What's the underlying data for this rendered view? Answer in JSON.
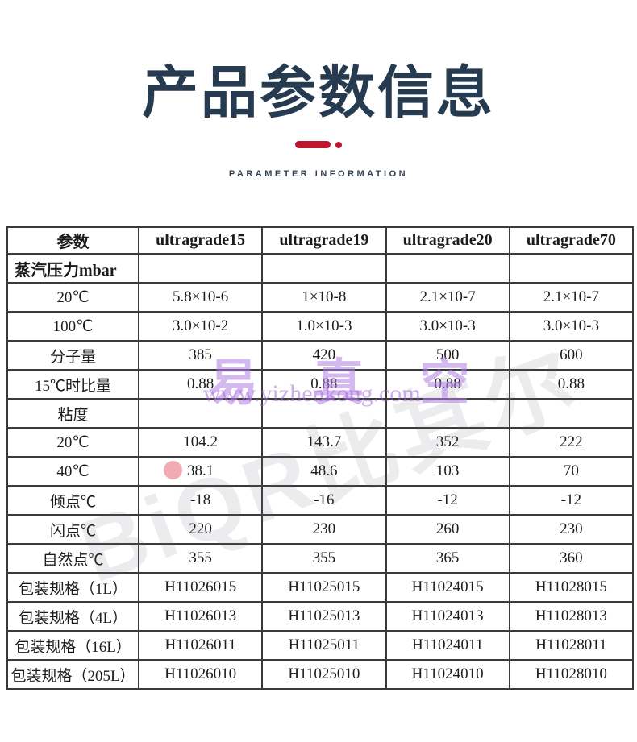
{
  "header": {
    "title": "产品参数信息",
    "subtitle": "PARAMETER INFORMATION"
  },
  "accent_color": "#c01530",
  "title_color": "#263a50",
  "watermarks": {
    "brand_cn": "易 真 空",
    "url": "www.yizhenkong.com",
    "diagonal_brand": "BiQR比其尔"
  },
  "table": {
    "columns": [
      "参数",
      "ultragrade15",
      "ultragrade19",
      "ultragrade20",
      "ultragrade70"
    ],
    "rows": [
      {
        "label": "蒸汽压力mbar",
        "bold": true,
        "values": [
          "",
          "",
          "",
          ""
        ]
      },
      {
        "label": "20℃",
        "bold": false,
        "values": [
          "5.8×10-6",
          "1×10-8",
          "2.1×10-7",
          "2.1×10-7"
        ]
      },
      {
        "label": "100℃",
        "bold": false,
        "values": [
          "3.0×10-2",
          "1.0×10-3",
          "3.0×10-3",
          "3.0×10-3"
        ]
      },
      {
        "label": "分子量",
        "bold": false,
        "values": [
          "385",
          "420",
          "500",
          "600"
        ]
      },
      {
        "label": "15℃时比量",
        "bold": false,
        "values": [
          "0.88",
          "0.88",
          "0.88",
          "0.88"
        ]
      },
      {
        "label": "粘度",
        "bold": false,
        "values": [
          "",
          "",
          "",
          ""
        ]
      },
      {
        "label": "20℃",
        "bold": false,
        "values": [
          "104.2",
          "143.7",
          "352",
          "222"
        ]
      },
      {
        "label": "40℃",
        "bold": false,
        "values": [
          "38.1",
          "48.6",
          "103",
          "70"
        ]
      },
      {
        "label": "倾点℃",
        "bold": false,
        "values": [
          "-18",
          "-16",
          "-12",
          "-12"
        ]
      },
      {
        "label": "闪点℃",
        "bold": false,
        "values": [
          "220",
          "230",
          "260",
          "230"
        ]
      },
      {
        "label": "自然点℃",
        "bold": false,
        "values": [
          "355",
          "355",
          "365",
          "360"
        ]
      },
      {
        "label": "包装规格（1L）",
        "bold": false,
        "values": [
          "H11026015",
          "H11025015",
          "H11024015",
          "H11028015"
        ]
      },
      {
        "label": "包装规格（4L）",
        "bold": false,
        "values": [
          "H11026013",
          "H11025013",
          "H11024013",
          "H11028013"
        ]
      },
      {
        "label": "包装规格（16L）",
        "bold": false,
        "values": [
          "H11026011",
          "H11025011",
          "H11024011",
          "H11028011"
        ]
      },
      {
        "label": "包装规格（205L）",
        "bold": false,
        "values": [
          "H11026010",
          "H11025010",
          "H11024010",
          "H11028010"
        ]
      }
    ]
  }
}
